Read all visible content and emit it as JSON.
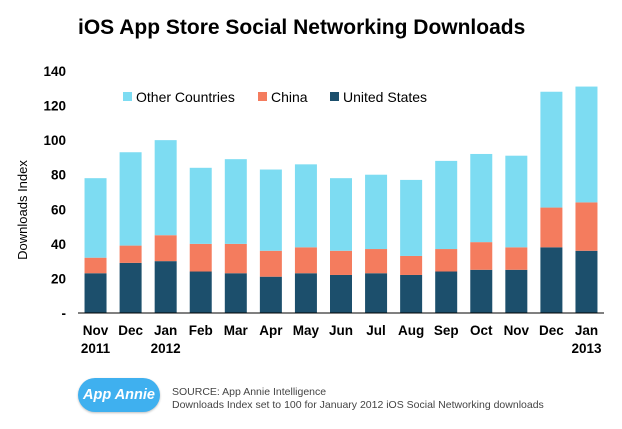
{
  "chart_data": {
    "type": "bar",
    "stacked": true,
    "title": "iOS App Store Social Networking Downloads",
    "ylabel": "Downloads Index",
    "ylim": [
      0,
      140
    ],
    "yticks": [
      "-",
      "20",
      "40",
      "60",
      "80",
      "100",
      "120",
      "140"
    ],
    "ytick_values": [
      0,
      20,
      40,
      60,
      80,
      100,
      120,
      140
    ],
    "categories": [
      {
        "month": "Nov",
        "year": "2011"
      },
      {
        "month": "Dec",
        "year": ""
      },
      {
        "month": "Jan",
        "year": "2012"
      },
      {
        "month": "Feb",
        "year": ""
      },
      {
        "month": "Mar",
        "year": ""
      },
      {
        "month": "Apr",
        "year": ""
      },
      {
        "month": "May",
        "year": ""
      },
      {
        "month": "Jun",
        "year": ""
      },
      {
        "month": "Jul",
        "year": ""
      },
      {
        "month": "Aug",
        "year": ""
      },
      {
        "month": "Sep",
        "year": ""
      },
      {
        "month": "Oct",
        "year": ""
      },
      {
        "month": "Nov",
        "year": ""
      },
      {
        "month": "Dec",
        "year": ""
      },
      {
        "month": "Jan",
        "year": "2013"
      }
    ],
    "series": [
      {
        "name": "United States",
        "color": "#1c4f6c",
        "values": [
          23,
          29,
          30,
          24,
          23,
          21,
          23,
          22,
          23,
          22,
          24,
          25,
          25,
          38,
          36
        ]
      },
      {
        "name": "China",
        "color": "#f47c5e",
        "values": [
          9,
          10,
          15,
          16,
          17,
          15,
          15,
          14,
          14,
          11,
          13,
          16,
          13,
          23,
          28
        ]
      },
      {
        "name": "Other Countries",
        "color": "#7ddcf2",
        "values": [
          46,
          54,
          55,
          44,
          49,
          47,
          48,
          42,
          43,
          44,
          51,
          51,
          53,
          67,
          67
        ]
      }
    ],
    "legend_order": [
      "Other Countries",
      "China",
      "United States"
    ],
    "legend_position": "top-left"
  },
  "footer": {
    "logo_text": "App Annie",
    "source_line1": "SOURCE: App Annie Intelligence",
    "source_line2": "Downloads Index set to 100 for January 2012 iOS Social Networking downloads"
  }
}
